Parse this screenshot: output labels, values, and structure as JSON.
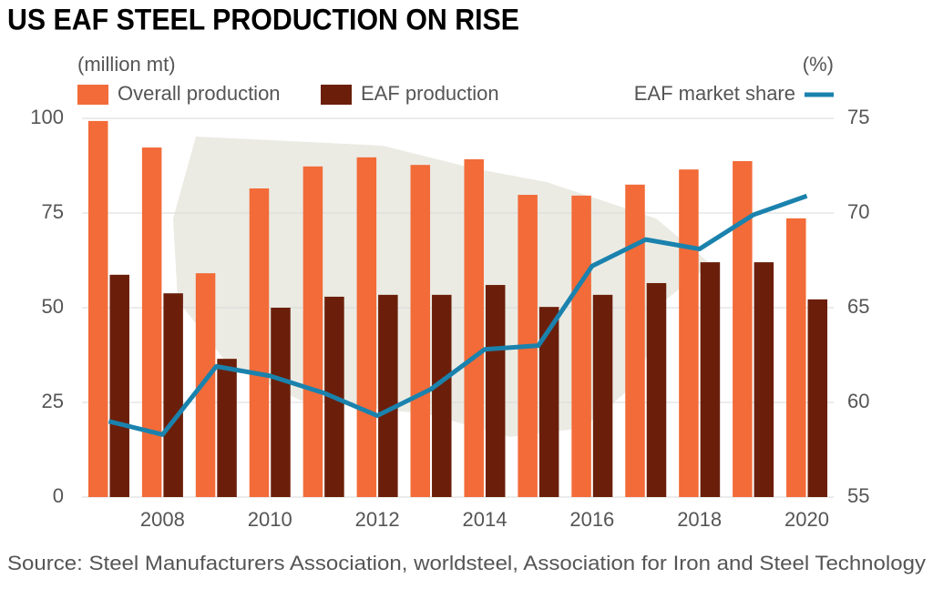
{
  "chart_data": {
    "type": "bar",
    "title": "US EAF STEEL PRODUCTION ON RISE",
    "y_label": "(million mt)",
    "y2_label": "(%)",
    "source": "Source: Steel Manufacturers Association, worldsteel, Association for Iron and Steel Technology",
    "categories": [
      null,
      "2008",
      null,
      "2010",
      null,
      "2012",
      null,
      "2014",
      null,
      "2016",
      null,
      "2018",
      null,
      "2020"
    ],
    "series": [
      {
        "name": "Overall production",
        "type": "bar",
        "color": "#f26b38",
        "values": [
          99.3,
          92.3,
          59.1,
          81.5,
          87.3,
          89.7,
          87.7,
          89.2,
          79.8,
          79.6,
          82.5,
          86.5,
          88.7,
          73.6
        ]
      },
      {
        "name": "EAF production",
        "type": "bar",
        "color": "#6b1f0a",
        "values": [
          58.7,
          53.8,
          36.5,
          50.0,
          52.9,
          53.4,
          53.4,
          56.0,
          50.2,
          53.4,
          56.5,
          62.0,
          62.0,
          52.2
        ]
      },
      {
        "name": "EAF market share",
        "type": "line",
        "axis": "y2",
        "color": "#1a82ad",
        "values": [
          59.0,
          58.3,
          61.9,
          61.4,
          60.5,
          59.3,
          60.7,
          62.8,
          63.0,
          67.2,
          68.6,
          68.1,
          69.9,
          70.9
        ]
      }
    ],
    "ylim": [
      0,
      100
    ],
    "yticks": [
      0,
      25,
      50,
      75,
      100
    ],
    "y2lim": [
      55,
      75
    ],
    "y2ticks": [
      55,
      60,
      65,
      70,
      75
    ],
    "grid": true
  }
}
